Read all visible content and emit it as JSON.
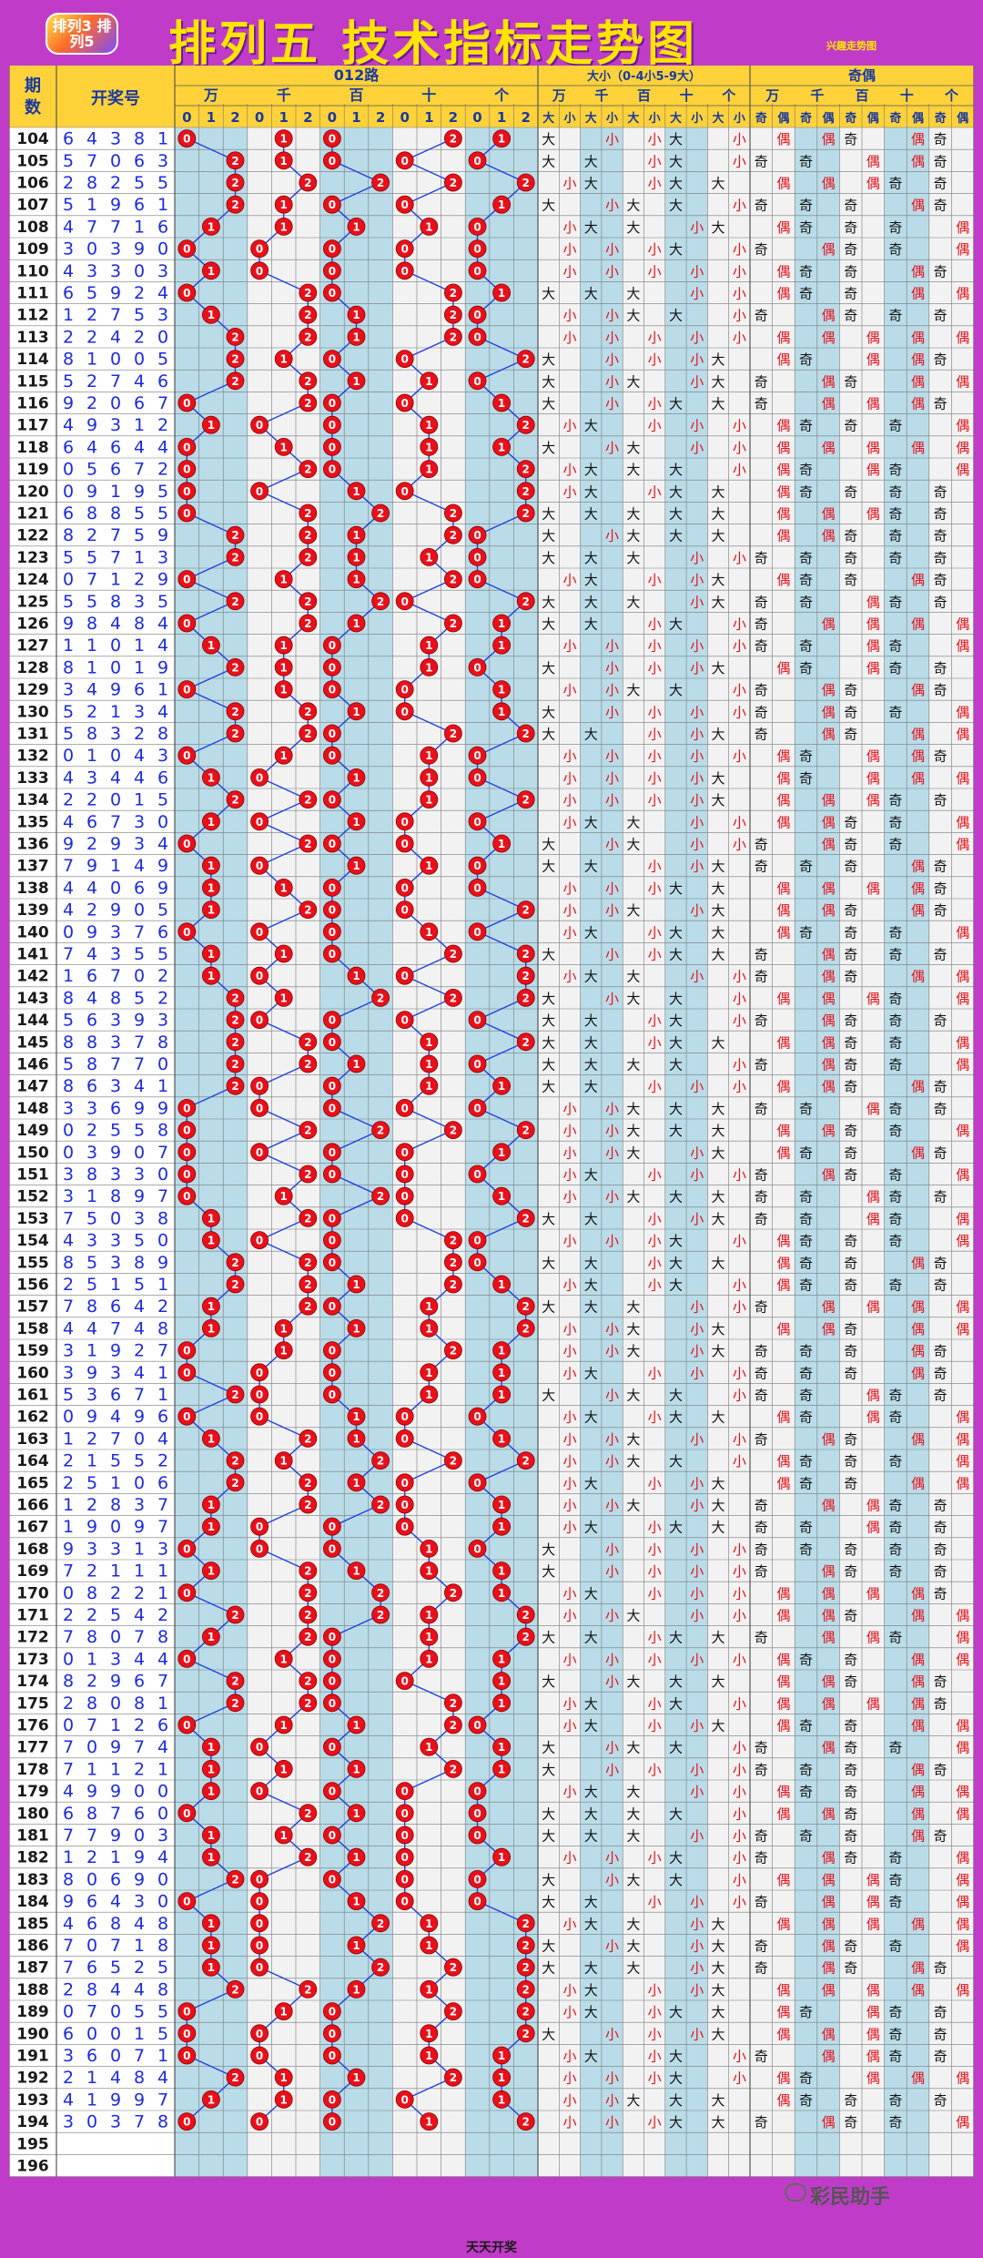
{
  "header": {
    "logo_text": "排列3 排列5",
    "title": "排列五 技术指标走势图",
    "subtag": "兴趣走势图"
  },
  "table": {
    "col_period": "期数",
    "col_number": "开奖号",
    "group_012": "012路",
    "group_bigsmall": "大小（0-4小5-9大）",
    "group_oddeven": "奇偶",
    "positions": [
      "万",
      "千",
      "百",
      "十",
      "个"
    ],
    "route_digits": [
      "0",
      "1",
      "2"
    ],
    "big": "大",
    "small": "小",
    "odd": "奇",
    "even": "偶",
    "draws": [
      [
        "104",
        "64381"
      ],
      [
        "105",
        "57063"
      ],
      [
        "106",
        "28255"
      ],
      [
        "107",
        "51961"
      ],
      [
        "108",
        "47716"
      ],
      [
        "109",
        "30390"
      ],
      [
        "110",
        "43303"
      ],
      [
        "111",
        "65924"
      ],
      [
        "112",
        "12753"
      ],
      [
        "113",
        "22420"
      ],
      [
        "114",
        "81005"
      ],
      [
        "115",
        "52746"
      ],
      [
        "116",
        "92067"
      ],
      [
        "117",
        "49312"
      ],
      [
        "118",
        "64644"
      ],
      [
        "119",
        "05672"
      ],
      [
        "120",
        "09195"
      ],
      [
        "121",
        "68855"
      ],
      [
        "122",
        "82759"
      ],
      [
        "123",
        "55713"
      ],
      [
        "124",
        "07129"
      ],
      [
        "125",
        "55835"
      ],
      [
        "126",
        "98484"
      ],
      [
        "127",
        "11014"
      ],
      [
        "128",
        "81019"
      ],
      [
        "129",
        "34961"
      ],
      [
        "130",
        "52134"
      ],
      [
        "131",
        "58328"
      ],
      [
        "132",
        "01043"
      ],
      [
        "133",
        "43446"
      ],
      [
        "134",
        "22015"
      ],
      [
        "135",
        "46730"
      ],
      [
        "136",
        "92934"
      ],
      [
        "137",
        "79149"
      ],
      [
        "138",
        "44069"
      ],
      [
        "139",
        "42905"
      ],
      [
        "140",
        "09376"
      ],
      [
        "141",
        "74355"
      ],
      [
        "142",
        "16702"
      ],
      [
        "143",
        "84852"
      ],
      [
        "144",
        "56393"
      ],
      [
        "145",
        "88378"
      ],
      [
        "146",
        "58770"
      ],
      [
        "147",
        "86341"
      ],
      [
        "148",
        "33699"
      ],
      [
        "149",
        "02558"
      ],
      [
        "150",
        "03907"
      ],
      [
        "151",
        "38330"
      ],
      [
        "152",
        "31897"
      ],
      [
        "153",
        "75038"
      ],
      [
        "154",
        "43350"
      ],
      [
        "155",
        "85389"
      ],
      [
        "156",
        "25151"
      ],
      [
        "157",
        "78642"
      ],
      [
        "158",
        "44748"
      ],
      [
        "159",
        "31927"
      ],
      [
        "160",
        "39341"
      ],
      [
        "161",
        "53671"
      ],
      [
        "162",
        "09496"
      ],
      [
        "163",
        "12704"
      ],
      [
        "164",
        "21552"
      ],
      [
        "165",
        "25106"
      ],
      [
        "166",
        "12837"
      ],
      [
        "167",
        "19097"
      ],
      [
        "168",
        "93313"
      ],
      [
        "169",
        "72111"
      ],
      [
        "170",
        "08221"
      ],
      [
        "171",
        "22542"
      ],
      [
        "172",
        "78078"
      ],
      [
        "173",
        "01344"
      ],
      [
        "174",
        "82967"
      ],
      [
        "175",
        "28081"
      ],
      [
        "176",
        "07126"
      ],
      [
        "177",
        "70974"
      ],
      [
        "178",
        "71121"
      ],
      [
        "179",
        "49900"
      ],
      [
        "180",
        "68760"
      ],
      [
        "181",
        "77903"
      ],
      [
        "182",
        "12194"
      ],
      [
        "183",
        "80690"
      ],
      [
        "184",
        "96430"
      ],
      [
        "185",
        "46848"
      ],
      [
        "186",
        "70718"
      ],
      [
        "187",
        "76525"
      ],
      [
        "188",
        "28448"
      ],
      [
        "189",
        "07055"
      ],
      [
        "190",
        "60015"
      ],
      [
        "191",
        "36071"
      ],
      [
        "192",
        "21484"
      ],
      [
        "193",
        "41997"
      ],
      [
        "194",
        "30378"
      ],
      [
        "195",
        ""
      ],
      [
        "196",
        ""
      ]
    ]
  },
  "footer": {
    "text": "天天开奖",
    "brand": "彩民助手"
  },
  "colors": {
    "background": "#c03cc8",
    "header_cell": "#ffd23a",
    "ball": "#e8101a",
    "line": "#2040e0",
    "number_text": "#1c2be0",
    "shade_col": "#b9dce8",
    "plain_col": "#f2f2f2",
    "big_text": "#111111",
    "small_text": "#e8101a"
  }
}
